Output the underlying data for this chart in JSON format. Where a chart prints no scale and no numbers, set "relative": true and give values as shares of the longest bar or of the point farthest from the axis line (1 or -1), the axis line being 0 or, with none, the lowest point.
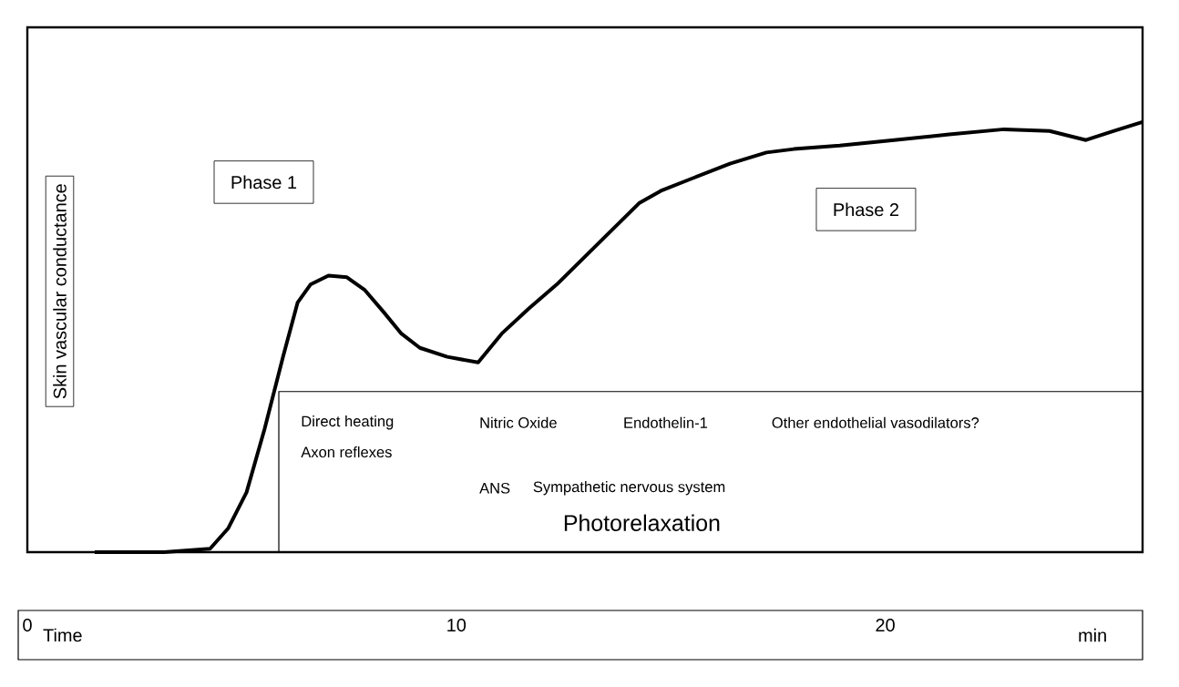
{
  "chart_data": {
    "type": "line",
    "relative": true,
    "ylabel": "Skin vascular conductance",
    "xlabel": "Time",
    "color": "#000000",
    "xlim": [
      0,
      26
    ],
    "xticks": [
      0,
      10,
      20
    ],
    "x": [
      1.57,
      3.19,
      4.26,
      4.68,
      5.11,
      5.53,
      5.96,
      6.3,
      6.6,
      7.02,
      7.45,
      7.87,
      8.3,
      8.72,
      9.15,
      9.79,
      10.51,
      11.06,
      11.7,
      12.34,
      12.98,
      13.62,
      14.26,
      14.77,
      15.53,
      16.38,
      17.23,
      17.87,
      18.94,
      20.21,
      21.49,
      22.77,
      23.83,
      24.68,
      25.32,
      26
    ],
    "values": [
      0,
      0,
      0.008,
      0.055,
      0.139,
      0.286,
      0.454,
      0.58,
      0.622,
      0.643,
      0.639,
      0.609,
      0.559,
      0.508,
      0.475,
      0.454,
      0.441,
      0.508,
      0.567,
      0.622,
      0.685,
      0.748,
      0.811,
      0.84,
      0.87,
      0.903,
      0.929,
      0.937,
      0.945,
      0.958,
      0.971,
      0.983,
      0.979,
      0.958,
      0.979,
      1.0
    ],
    "annotations": [
      "Phase 1",
      "Phase 2",
      "Direct heating",
      "Nitric Oxide",
      "Endothelin-1",
      "Other endothelial vasodilators?",
      "Axon reflexes",
      "ANS",
      "Sympathetic nervous system",
      "Photorelaxation",
      "min"
    ]
  }
}
